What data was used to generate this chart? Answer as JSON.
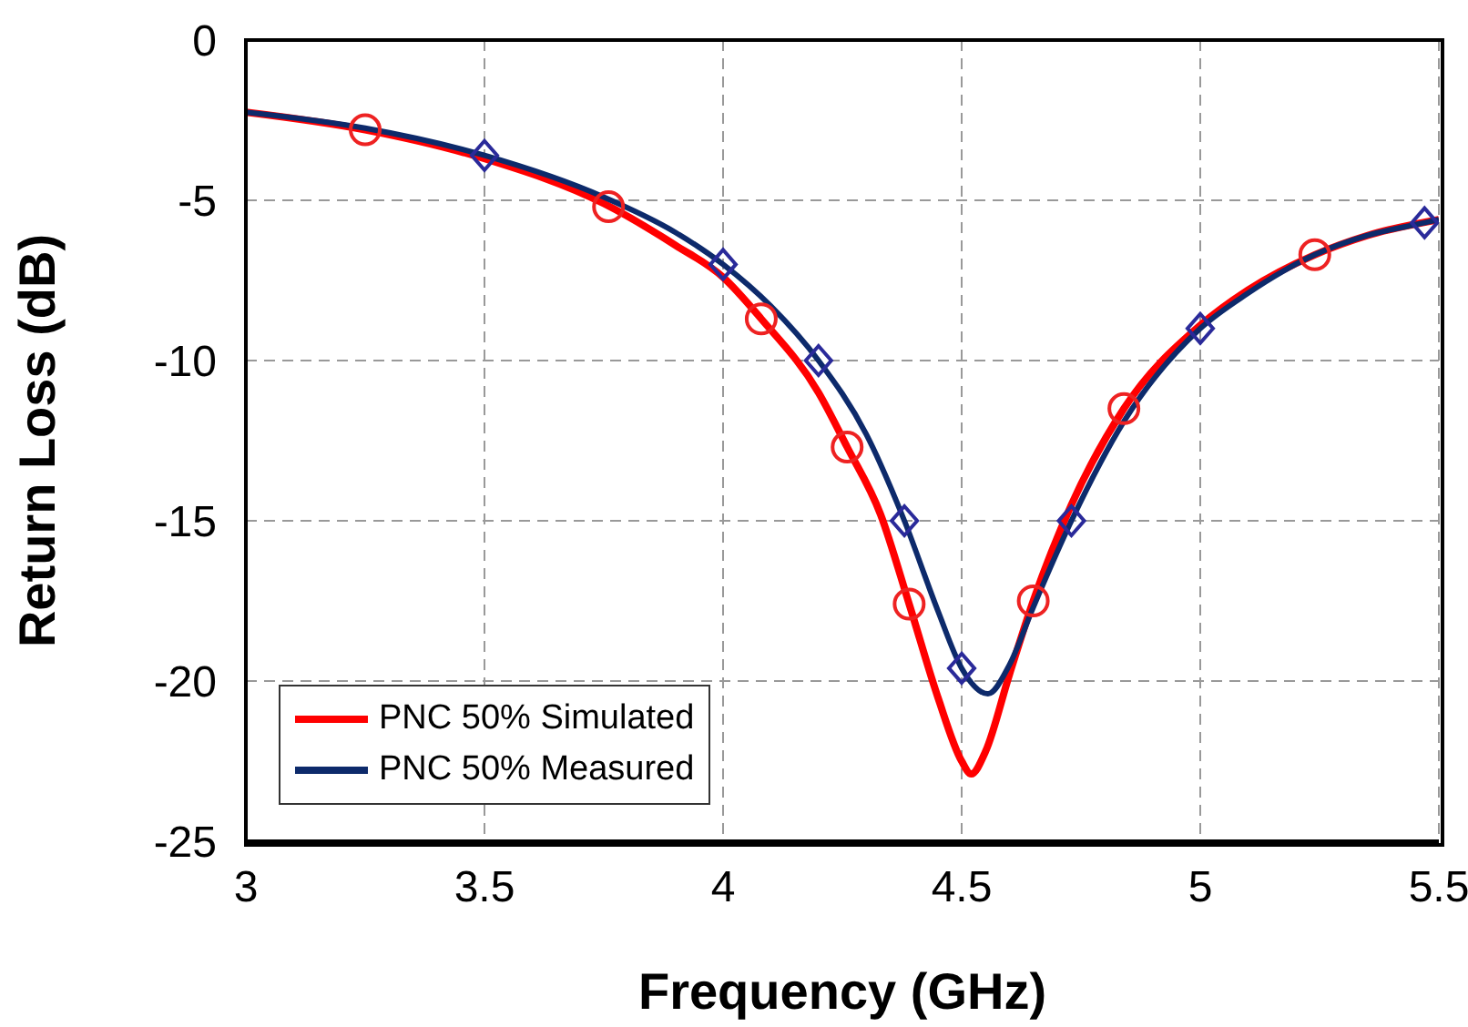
{
  "chart_data": {
    "type": "line",
    "xlabel": "Frequency (GHz)",
    "ylabel": "Return Loss (dB)",
    "xlim": [
      3,
      5.5
    ],
    "xticks": [
      3,
      3.5,
      4,
      4.5,
      5,
      5.5
    ],
    "ylim": [
      -25,
      0
    ],
    "yticks": [
      -25,
      -20,
      -15,
      -10,
      -5,
      0
    ],
    "grid": true,
    "legend": "bottom left",
    "line_style": "solid",
    "series": [
      {
        "name": "PNC 50% Simulated",
        "color": "#ff0000",
        "marker": "none",
        "x": [
          3,
          3.25,
          3.5,
          3.75,
          3.9,
          4.0,
          4.08,
          4.2,
          4.26,
          4.33,
          4.39,
          4.45,
          4.5,
          4.52,
          4.55,
          4.6,
          4.65,
          4.73,
          4.84,
          5.0,
          5.1,
          5.24,
          5.35,
          5.5
        ],
        "values": [
          -2.25,
          -2.8,
          -3.7,
          -5.1,
          -6.4,
          -7.4,
          -8.7,
          -11.0,
          -12.7,
          -14.8,
          -17.6,
          -20.5,
          -22.5,
          -22.9,
          -22.2,
          -19.8,
          -17.5,
          -14.5,
          -11.5,
          -8.9,
          -7.8,
          -6.7,
          -6.1,
          -5.6
        ]
      },
      {
        "name": "PNC 50% Measured",
        "color": "#0d2a6b",
        "marker": "none",
        "x": [
          3,
          3.25,
          3.5,
          3.75,
          3.9,
          4.0,
          4.1,
          4.2,
          4.3,
          4.38,
          4.45,
          4.5,
          4.555,
          4.6,
          4.65,
          4.73,
          4.84,
          5.0,
          5.1,
          5.24,
          5.35,
          5.47,
          5.5
        ],
        "values": [
          -2.25,
          -2.75,
          -3.6,
          -4.9,
          -6.0,
          -7.0,
          -8.3,
          -10.0,
          -12.3,
          -15.0,
          -17.8,
          -19.6,
          -20.4,
          -19.5,
          -17.7,
          -15.0,
          -11.9,
          -9.0,
          -7.9,
          -6.7,
          -6.1,
          -5.7,
          -5.6
        ]
      },
      {
        "color": "#ee2222",
        "type": "scatter",
        "marker": "circle",
        "x": [
          3.25,
          3.76,
          4.08,
          4.26,
          4.39,
          4.65,
          4.84,
          5.24
        ],
        "values": [
          -2.8,
          -5.2,
          -8.7,
          -12.7,
          -17.6,
          -17.5,
          -11.5,
          -6.7
        ]
      },
      {
        "color": "#2a2a9a",
        "type": "scatter",
        "marker": "diamond",
        "x": [
          3.5,
          4.0,
          4.2,
          4.38,
          4.5,
          4.73,
          5.0,
          5.47
        ],
        "values": [
          -3.6,
          -7.0,
          -10.0,
          -15.0,
          -19.6,
          -15.0,
          -9.0,
          -5.7
        ]
      }
    ]
  }
}
